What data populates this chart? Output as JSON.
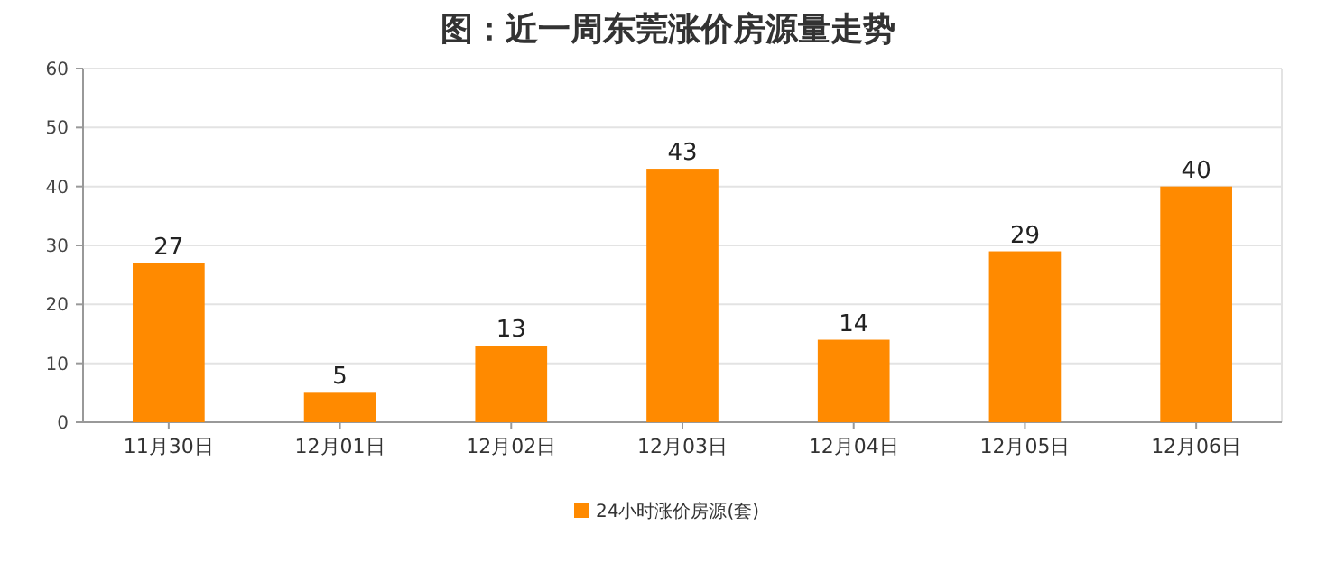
{
  "chart_data": {
    "type": "bar",
    "title": "图：近一周东莞涨价房源量走势",
    "categories": [
      "11月30日",
      "12月01日",
      "12月02日",
      "12月03日",
      "12月04日",
      "12月05日",
      "12月06日"
    ],
    "series": [
      {
        "name": "24小时涨价房源(套)",
        "color": "#ff8a00",
        "values": [
          27,
          5,
          13,
          43,
          14,
          29,
          40
        ]
      }
    ],
    "ylim": [
      0,
      60
    ],
    "yticks": [
      0,
      10,
      20,
      30,
      40,
      50,
      60
    ],
    "grid": "y",
    "legend": "bottom",
    "data_labels": true
  }
}
